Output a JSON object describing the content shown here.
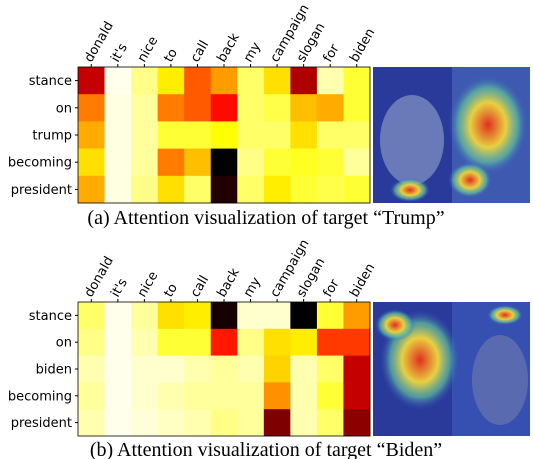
{
  "chart_data": [
    {
      "type": "heatmap",
      "title": "(a) Attention visualization of target “Trump”",
      "colormap": "hot_r",
      "categories": [
        "donald",
        "it's",
        "nice",
        "to",
        "call",
        "back",
        "my",
        "campaign",
        "slogan",
        "for",
        "biden"
      ],
      "rows": [
        "stance",
        "on",
        "trump",
        "becoming",
        "president"
      ],
      "values": [
        [
          0.72,
          0.02,
          0.12,
          0.28,
          0.5,
          0.4,
          0.15,
          0.3,
          0.75,
          0.08,
          0.2
        ],
        [
          0.45,
          0.03,
          0.1,
          0.45,
          0.5,
          0.62,
          0.15,
          0.18,
          0.35,
          0.38,
          0.2
        ],
        [
          0.38,
          0.03,
          0.1,
          0.2,
          0.2,
          0.25,
          0.15,
          0.15,
          0.3,
          0.15,
          0.15
        ],
        [
          0.3,
          0.03,
          0.1,
          0.45,
          0.35,
          1.0,
          0.12,
          0.2,
          0.22,
          0.2,
          0.1
        ],
        [
          0.38,
          0.03,
          0.12,
          0.3,
          0.15,
          0.95,
          0.15,
          0.28,
          0.2,
          0.18,
          0.2
        ]
      ]
    },
    {
      "type": "heatmap",
      "title": "(b) Attention visualization of target “Biden”",
      "colormap": "hot_r",
      "categories": [
        "donald",
        "it's",
        "nice",
        "to",
        "call",
        "back",
        "my",
        "campaign",
        "slogan",
        "for",
        "biden"
      ],
      "rows": [
        "stance",
        "on",
        "biden",
        "becoming",
        "president"
      ],
      "values": [
        [
          0.15,
          0.02,
          0.1,
          0.3,
          0.28,
          0.97,
          0.05,
          0.05,
          1.0,
          0.2,
          0.4
        ],
        [
          0.12,
          0.02,
          0.08,
          0.2,
          0.2,
          0.6,
          0.12,
          0.3,
          0.28,
          0.55,
          0.55
        ],
        [
          0.08,
          0.02,
          0.05,
          0.05,
          0.08,
          0.1,
          0.08,
          0.32,
          0.08,
          0.15,
          0.72
        ],
        [
          0.1,
          0.02,
          0.05,
          0.08,
          0.1,
          0.1,
          0.1,
          0.42,
          0.08,
          0.2,
          0.72
        ],
        [
          0.08,
          0.02,
          0.04,
          0.06,
          0.08,
          0.12,
          0.1,
          0.82,
          0.08,
          0.15,
          0.8
        ]
      ]
    }
  ]
}
